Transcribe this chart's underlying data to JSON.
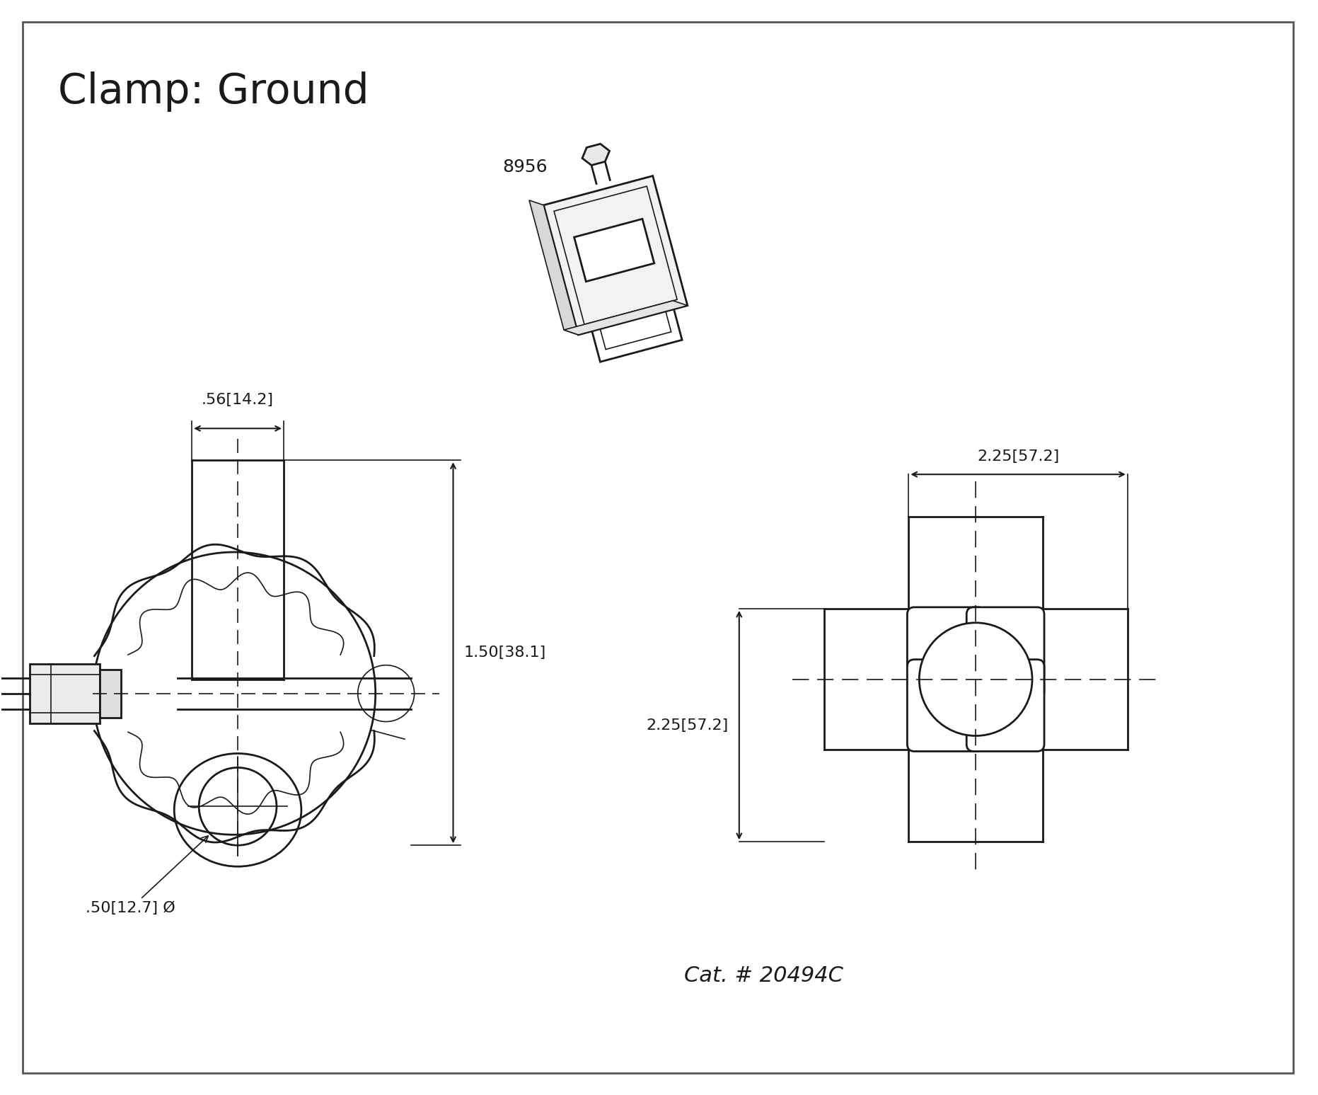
{
  "title": "Clamp: Ground",
  "part_number": "8956",
  "cat_number": "Cat. # 20494C",
  "dim_bolt_width": ".56[14.2]",
  "dim_height": "1.50[38.1]",
  "dim_width_top": "2.25[57.2]",
  "dim_width_mid": "2.25[57.2]",
  "dim_dia": ".50[12.7] Ø",
  "bg_color": "#ffffff",
  "line_color": "#1a1a1a",
  "border_color": "#555555",
  "title_fontsize": 42,
  "label_fontsize": 16,
  "cat_fontsize": 22
}
